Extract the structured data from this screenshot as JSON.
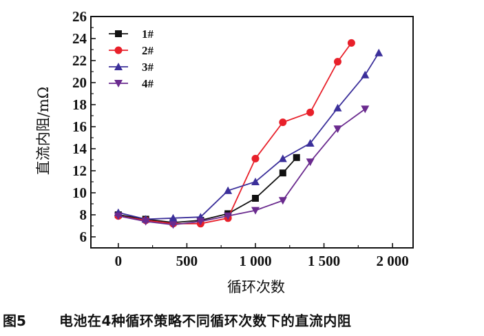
{
  "chart_data": {
    "type": "line",
    "title": "",
    "xlabel": "循环次数",
    "ylabel": "直流内阻/mΩ",
    "xlim": [
      -200,
      2150
    ],
    "ylim": [
      5,
      26
    ],
    "xticks": [
      0,
      500,
      1000,
      1500,
      2000
    ],
    "xtick_labels": [
      "0",
      "500",
      "1 000",
      "1 500",
      "2 000"
    ],
    "yticks": [
      6,
      8,
      10,
      12,
      14,
      16,
      18,
      20,
      22,
      24,
      26
    ],
    "ytick_labels": [
      "6",
      "8",
      "10",
      "12",
      "14",
      "16",
      "18",
      "20",
      "22",
      "24",
      "26"
    ],
    "legend_position": "top-left",
    "grid": false,
    "series": [
      {
        "name": "1#",
        "color": "#111111",
        "marker": "square",
        "x": [
          0,
          200,
          400,
          600,
          800,
          1000,
          1200,
          1300
        ],
        "values": [
          8.0,
          7.6,
          7.3,
          7.5,
          8.1,
          9.5,
          11.8,
          13.2
        ]
      },
      {
        "name": "2#",
        "color": "#e8202a",
        "marker": "circle",
        "x": [
          0,
          200,
          400,
          600,
          800,
          1000,
          1200,
          1400,
          1600,
          1700
        ],
        "values": [
          7.9,
          7.5,
          7.2,
          7.2,
          7.7,
          13.1,
          16.4,
          17.3,
          21.9,
          23.6
        ]
      },
      {
        "name": "3#",
        "color": "#3b2f9a",
        "marker": "triangle-up",
        "x": [
          0,
          200,
          400,
          600,
          800,
          1000,
          1200,
          1400,
          1600,
          1800,
          1900
        ],
        "values": [
          8.2,
          7.6,
          7.7,
          7.8,
          10.2,
          11.0,
          13.1,
          14.5,
          17.7,
          20.7,
          22.7
        ]
      },
      {
        "name": "4#",
        "color": "#6a2a8e",
        "marker": "triangle-down",
        "x": [
          0,
          200,
          400,
          600,
          800,
          1000,
          1200,
          1400,
          1600,
          1800
        ],
        "values": [
          7.9,
          7.4,
          7.1,
          7.4,
          7.9,
          8.4,
          9.3,
          12.8,
          15.8,
          17.6
        ]
      }
    ]
  },
  "caption": {
    "number": "图5",
    "text": "电池在4种循环策略不同循环次数下的直流内阻"
  }
}
